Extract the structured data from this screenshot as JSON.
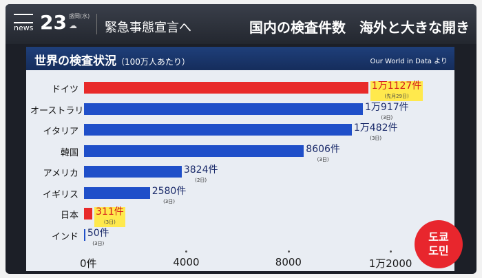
{
  "header": {
    "logo_num": "23",
    "logo_news": "news",
    "weather_text": "盛岡(水)",
    "topic": "緊急事態宣言へ",
    "headline": "国内の検査件数　海外と大きな開き"
  },
  "panel": {
    "title": "世界の検査状況",
    "title_sub": "（100万人あたり）",
    "source": "Our World in Data より"
  },
  "chart_data": {
    "type": "bar",
    "orientation": "horizontal",
    "title": "世界の検査状況",
    "subtitle": "（100万人あたり）",
    "categories": [
      "ドイツ",
      "オーストラリア",
      "イタリア",
      "韓国",
      "アメリカ",
      "イギリス",
      "日本",
      "インド"
    ],
    "values": [
      11127,
      10917,
      10482,
      8606,
      3824,
      2580,
      311,
      50
    ],
    "value_labels": [
      "1万1127件",
      "1万917件",
      "1万482件",
      "8606件",
      "3824件",
      "2580件",
      "311件",
      "50件"
    ],
    "notes": [
      "(先月29日)",
      "(3日)",
      "(3日)",
      "(3日)",
      "(2日)",
      "(3日)",
      "(3日)",
      "(3日)"
    ],
    "highlight": [
      true,
      false,
      false,
      false,
      false,
      false,
      true,
      false
    ],
    "ticks": [
      0,
      4000,
      8000,
      12000
    ],
    "tick_labels": [
      "0件",
      "4000",
      "8000",
      "1万2000"
    ],
    "xlim": [
      0,
      12000
    ],
    "colors": {
      "bar": "#1f4fc9",
      "highlight": "#e82a2a"
    }
  },
  "badge": {
    "line1": "도쿄",
    "line2": "도민"
  }
}
